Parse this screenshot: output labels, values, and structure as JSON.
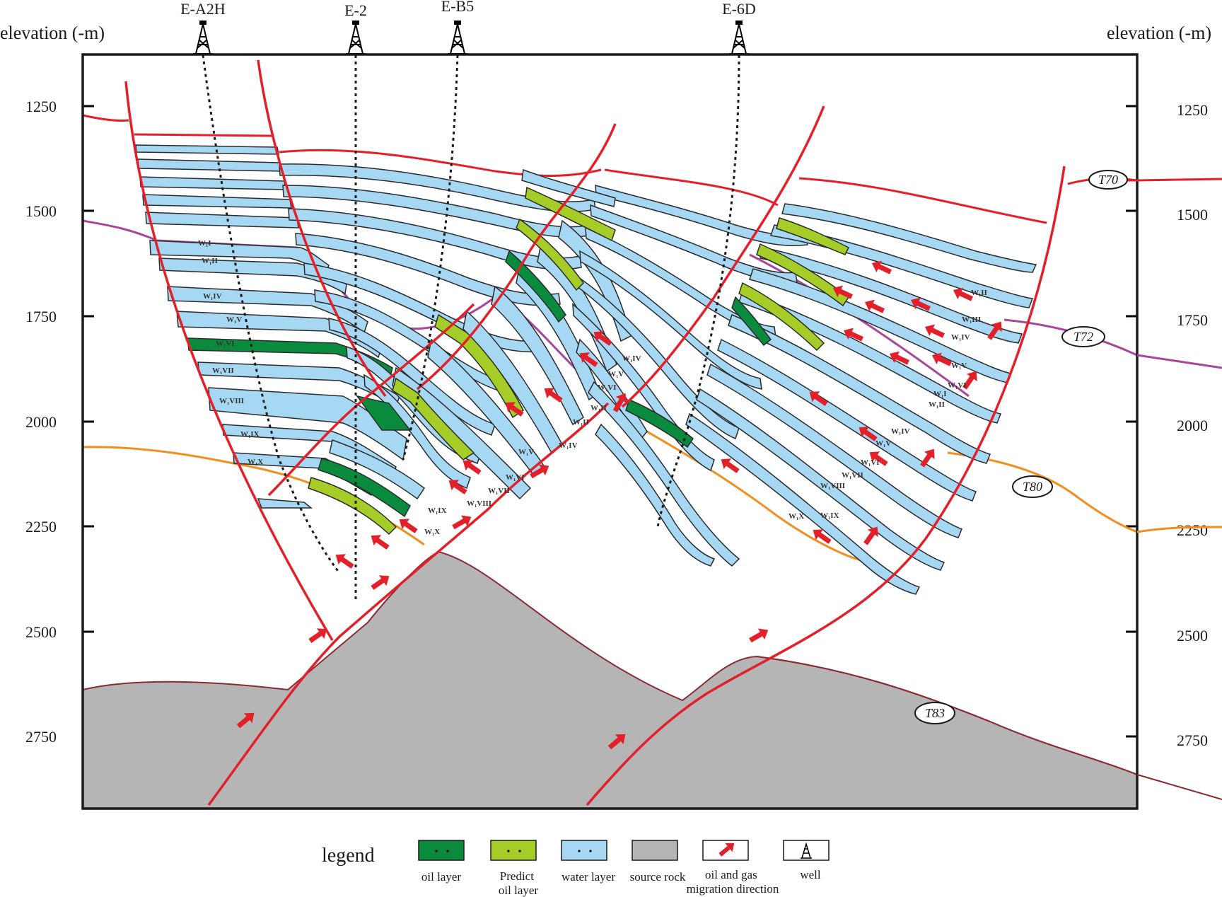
{
  "axes": {
    "left_label": "elevation  (-m)",
    "right_label": "elevation  (-m)",
    "ticks": [
      "1250",
      "1500",
      "1750",
      "2000",
      "2250",
      "2500",
      "2750"
    ]
  },
  "wells": [
    "E-A2H",
    "E-2",
    "E-B5",
    "E-6D"
  ],
  "horizons": [
    "T70",
    "T72",
    "T80",
    "T83"
  ],
  "layers": {
    "block1": [
      "W₁I",
      "W₁II",
      "W₁IV",
      "W₁V",
      "W₁VI",
      "W₁VII",
      "W₁VIII",
      "W₁IX",
      "W₁X"
    ],
    "block3": [
      "W₁IX",
      "W₁X",
      "W₁V",
      "W₁VI",
      "W₁VII",
      "W₁VIII",
      "W₁IV",
      "W₁II"
    ],
    "block4": [
      "W₁IV",
      "W₁V",
      "W₁VI",
      "W₁II"
    ],
    "block5": [
      "W₁IV",
      "W₁V",
      "W₁VI",
      "W₁VII",
      "W₁VIII",
      "W₁IX",
      "W₁X",
      "W₁II",
      "W₁III",
      "W₁IV",
      "W₁V",
      "W₁VI",
      "W₁II",
      "W₁I"
    ]
  },
  "legend": {
    "title": "legend",
    "items": [
      {
        "key": "oil",
        "label": "oil layer",
        "color": "#0a8a3c"
      },
      {
        "key": "predict",
        "label": "Predict oil layer",
        "color": "#a6cc28"
      },
      {
        "key": "water",
        "label": "water layer",
        "color": "#a6d8f3"
      },
      {
        "key": "source",
        "label": "source rock",
        "color": "#b5b5b5"
      },
      {
        "key": "migration",
        "label": "oil and gas migration direction",
        "color": "#e8202a"
      },
      {
        "key": "well",
        "label": "well",
        "color": "#000000"
      }
    ]
  },
  "colors": {
    "fault": "#e3202a",
    "T70": "#e3202a",
    "T72": "#a8479a",
    "T80": "#f18f1e",
    "T83": "#8c2a32",
    "water": "#a6d8f3",
    "oil": "#0a8a3c",
    "predict": "#a6cc28",
    "source": "#b5b5b5"
  }
}
